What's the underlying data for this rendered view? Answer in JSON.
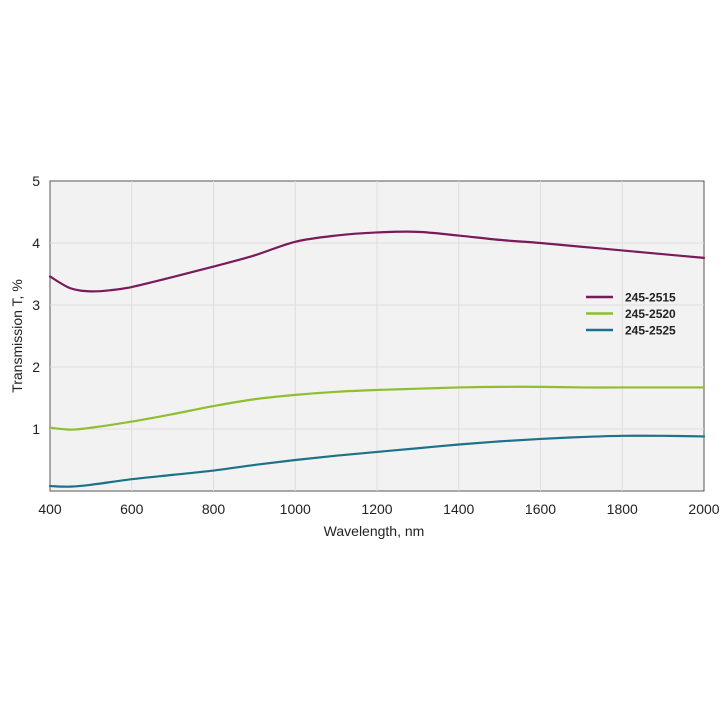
{
  "chart_data": {
    "type": "line",
    "title": "",
    "xlabel": "Wavelength, nm",
    "ylabel": "Transmission T, %",
    "xlim": [
      400,
      2000
    ],
    "ylim": [
      0,
      5
    ],
    "x_ticks": [
      "400",
      "600",
      "800",
      "1000",
      "1200",
      "1400",
      "1600",
      "1800",
      "2000"
    ],
    "y_ticks": [
      "1",
      "2",
      "3",
      "4",
      "5"
    ],
    "grid": true,
    "legend_position": "right",
    "plot_background": "#f2f2f2",
    "grid_color": "#dddddd",
    "series": [
      {
        "name": "245-2515",
        "color": "#7a1a5a",
        "x": [
          400,
          450,
          500,
          550,
          600,
          700,
          800,
          900,
          1000,
          1100,
          1200,
          1300,
          1400,
          1500,
          1600,
          1700,
          1800,
          1900,
          2000
        ],
        "y": [
          3.46,
          3.27,
          3.22,
          3.24,
          3.29,
          3.45,
          3.62,
          3.8,
          4.02,
          4.12,
          4.17,
          4.18,
          4.12,
          4.05,
          4.0,
          3.94,
          3.88,
          3.82,
          3.76
        ]
      },
      {
        "name": "245-2520",
        "color": "#8fbe2e",
        "x": [
          400,
          450,
          500,
          600,
          700,
          800,
          900,
          1000,
          1100,
          1200,
          1300,
          1400,
          1500,
          1600,
          1700,
          1800,
          1900,
          2000
        ],
        "y": [
          1.02,
          0.99,
          1.02,
          1.12,
          1.24,
          1.37,
          1.48,
          1.55,
          1.6,
          1.63,
          1.65,
          1.67,
          1.68,
          1.68,
          1.67,
          1.67,
          1.67,
          1.67
        ]
      },
      {
        "name": "245-2525",
        "color": "#1d7189",
        "x": [
          400,
          450,
          500,
          600,
          700,
          800,
          900,
          1000,
          1100,
          1200,
          1300,
          1400,
          1500,
          1600,
          1700,
          1800,
          1900,
          2000
        ],
        "y": [
          0.08,
          0.07,
          0.1,
          0.19,
          0.26,
          0.33,
          0.42,
          0.5,
          0.57,
          0.63,
          0.69,
          0.75,
          0.8,
          0.84,
          0.87,
          0.89,
          0.89,
          0.88
        ]
      }
    ]
  }
}
